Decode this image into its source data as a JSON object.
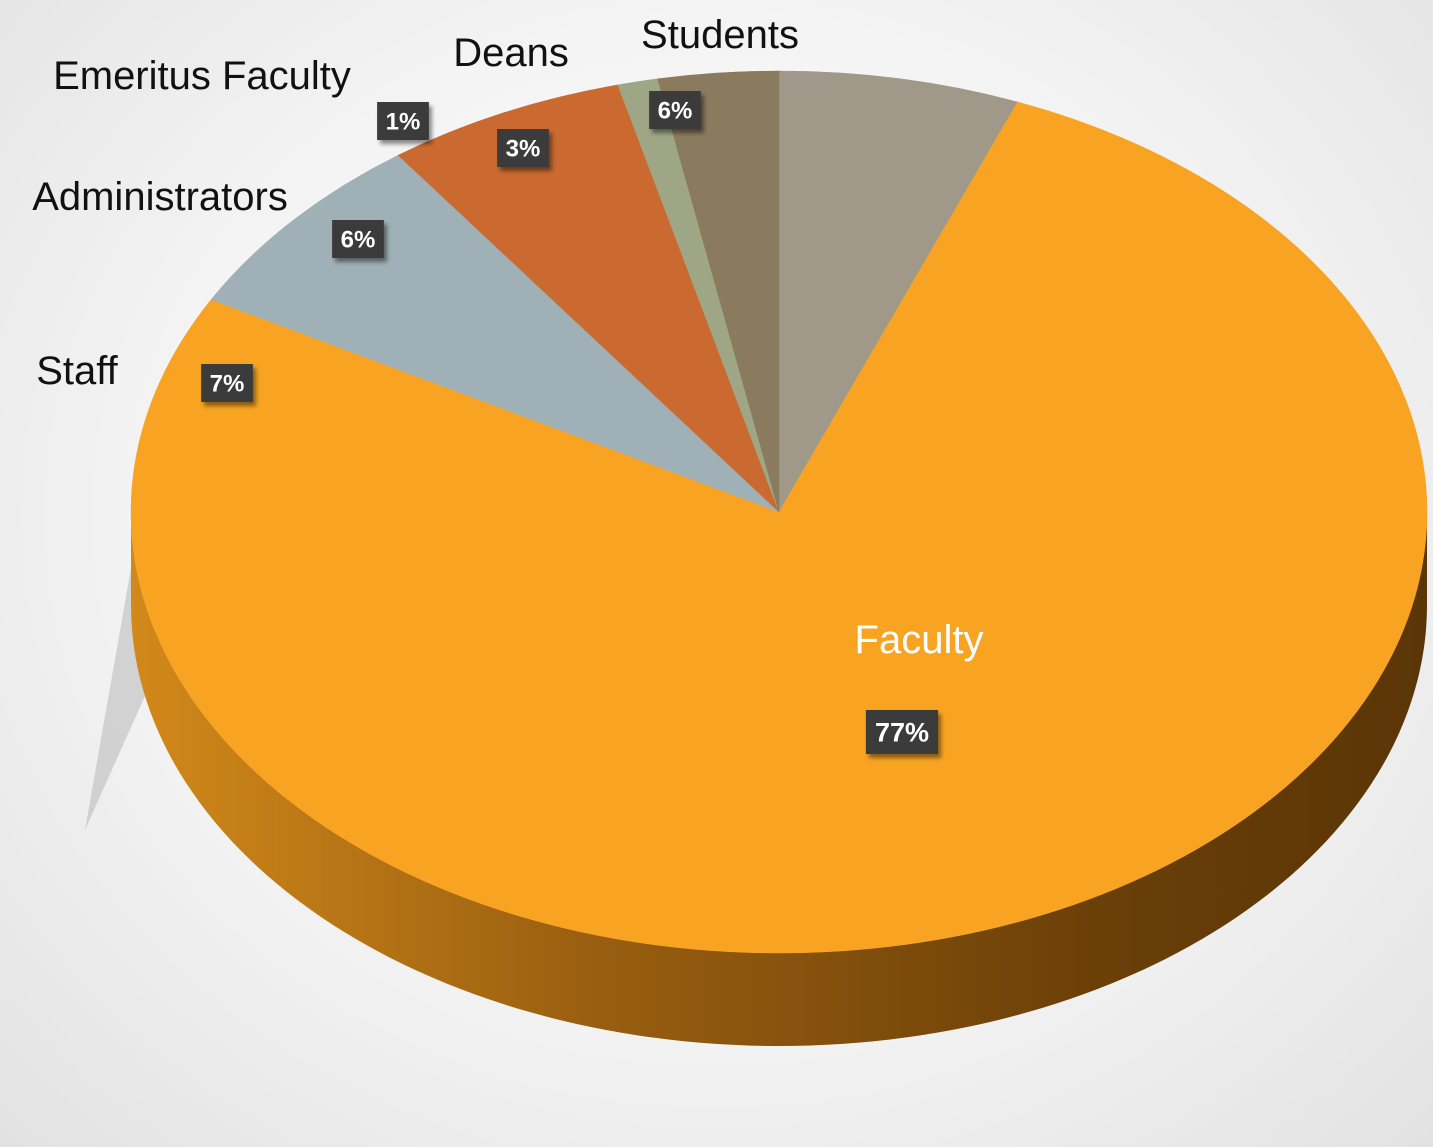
{
  "chart_data": {
    "type": "pie",
    "categories": [
      "Students",
      "Faculty",
      "Staff",
      "Administrators",
      "Emeritus Faculty",
      "Deans"
    ],
    "values": [
      6,
      77,
      7,
      6,
      1,
      3
    ],
    "value_labels": [
      "6%",
      "77%",
      "7%",
      "6%",
      "1%",
      "3%"
    ],
    "colors": [
      "#A09888",
      "#F8A422",
      "#9FB1B6",
      "#CB6A30",
      "#9EA685",
      "#8A7A5E"
    ],
    "style": "3d",
    "legend": "none"
  }
}
